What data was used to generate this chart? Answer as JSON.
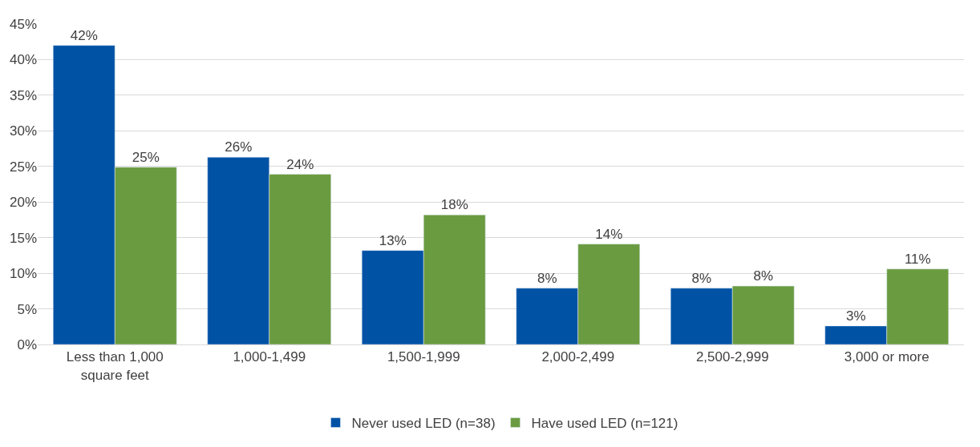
{
  "chart_data": {
    "type": "bar",
    "categories": [
      "Less than 1,000\nsquare feet",
      "1,000-1,499",
      "1,500-1,999",
      "2,000-2,499",
      "2,500-2,999",
      "3,000 or more"
    ],
    "series": [
      {
        "name": "Never used LED (n=38)",
        "color": "#0052a5",
        "values": [
          42.0,
          26.3,
          13.2,
          7.9,
          7.9,
          2.6
        ],
        "value_labels": [
          "42%",
          "26%",
          "13%",
          "8%",
          "8%",
          "3%"
        ]
      },
      {
        "name": "Have used LED (n=121)",
        "color": "#6a9b40",
        "values": [
          24.9,
          23.9,
          18.2,
          14.1,
          8.2,
          10.6
        ],
        "value_labels": [
          "25%",
          "24%",
          "18%",
          "14%",
          "8%",
          "11%"
        ]
      }
    ],
    "ylim": [
      0,
      45
    ],
    "yticks": [
      {
        "value": 0,
        "label": "0%"
      },
      {
        "value": 5,
        "label": "5%"
      },
      {
        "value": 10,
        "label": "10%"
      },
      {
        "value": 15,
        "label": "15%"
      },
      {
        "value": 20,
        "label": "20%"
      },
      {
        "value": 25,
        "label": "25%"
      },
      {
        "value": 30,
        "label": "30%"
      },
      {
        "value": 35,
        "label": "35%"
      },
      {
        "value": 40,
        "label": "40%"
      },
      {
        "value": 45,
        "label": "45%"
      }
    ],
    "grid": "y",
    "legend": "bottom"
  }
}
